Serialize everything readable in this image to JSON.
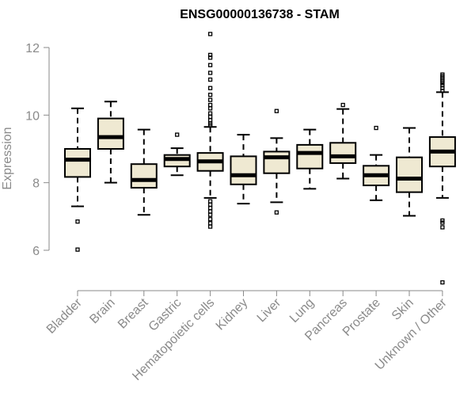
{
  "chart_data": {
    "type": "box",
    "title": "ENSG00000136738 - STAM",
    "xlabel": "",
    "ylabel": "Expression",
    "ylim": [
      4.9,
      12.4
    ],
    "yticks": [
      6,
      8,
      10,
      12
    ],
    "box_fill": "#efe9d2",
    "box_stroke": "#000000",
    "axis_color": "#8a8a8a",
    "categories": [
      "Bladder",
      "Brain",
      "Breast",
      "Gastric",
      "Hematopoietic cells",
      "Kidney",
      "Liver",
      "Lung",
      "Pancreas",
      "Prostate",
      "Skin",
      "Unknown / Other"
    ],
    "boxes": [
      {
        "category": "Bladder",
        "whisker_low": 7.3,
        "q1": 8.17,
        "median": 8.68,
        "q3": 9.0,
        "whisker_high": 10.2,
        "outliers": [
          6.85,
          6.02
        ]
      },
      {
        "category": "Brain",
        "whisker_low": 8.0,
        "q1": 9.0,
        "median": 9.35,
        "q3": 9.9,
        "whisker_high": 10.4,
        "outliers": []
      },
      {
        "category": "Breast",
        "whisker_low": 7.05,
        "q1": 7.85,
        "median": 8.08,
        "q3": 8.55,
        "whisker_high": 9.57,
        "outliers": []
      },
      {
        "category": "Gastric",
        "whisker_low": 8.22,
        "q1": 8.48,
        "median": 8.7,
        "q3": 8.82,
        "whisker_high": 9.02,
        "outliers": [
          9.42
        ]
      },
      {
        "category": "Hematopoietic cells",
        "whisker_low": 7.55,
        "q1": 8.35,
        "median": 8.63,
        "q3": 8.88,
        "whisker_high": 9.65,
        "outliers": [
          12.4,
          11.78,
          11.7,
          11.48,
          11.25,
          11.05,
          10.8,
          10.6,
          10.45,
          10.3,
          10.2,
          10.05,
          9.95,
          9.85,
          9.75,
          9.7,
          7.45,
          7.35,
          7.25,
          7.15,
          7.05,
          6.92,
          6.8,
          6.7
        ]
      },
      {
        "category": "Kidney",
        "whisker_low": 7.38,
        "q1": 7.95,
        "median": 8.22,
        "q3": 8.78,
        "whisker_high": 9.42,
        "outliers": []
      },
      {
        "category": "Liver",
        "whisker_low": 7.42,
        "q1": 8.28,
        "median": 8.75,
        "q3": 8.92,
        "whisker_high": 9.32,
        "outliers": [
          10.12,
          7.12
        ]
      },
      {
        "category": "Lung",
        "whisker_low": 7.82,
        "q1": 8.42,
        "median": 8.88,
        "q3": 9.12,
        "whisker_high": 9.57,
        "outliers": []
      },
      {
        "category": "Pancreas",
        "whisker_low": 8.12,
        "q1": 8.58,
        "median": 8.78,
        "q3": 9.18,
        "whisker_high": 10.18,
        "outliers": [
          10.3
        ]
      },
      {
        "category": "Prostate",
        "whisker_low": 7.48,
        "q1": 7.92,
        "median": 8.22,
        "q3": 8.5,
        "whisker_high": 8.82,
        "outliers": [
          9.62
        ]
      },
      {
        "category": "Skin",
        "whisker_low": 7.02,
        "q1": 7.72,
        "median": 8.12,
        "q3": 8.75,
        "whisker_high": 9.62,
        "outliers": []
      },
      {
        "category": "Unknown / Other",
        "whisker_low": 7.55,
        "q1": 8.48,
        "median": 8.92,
        "q3": 9.35,
        "whisker_high": 10.68,
        "outliers": [
          11.2,
          11.15,
          11.1,
          11.05,
          11.0,
          10.95,
          10.88,
          10.8,
          10.72,
          6.88,
          6.82,
          6.68,
          5.05
        ]
      }
    ]
  }
}
